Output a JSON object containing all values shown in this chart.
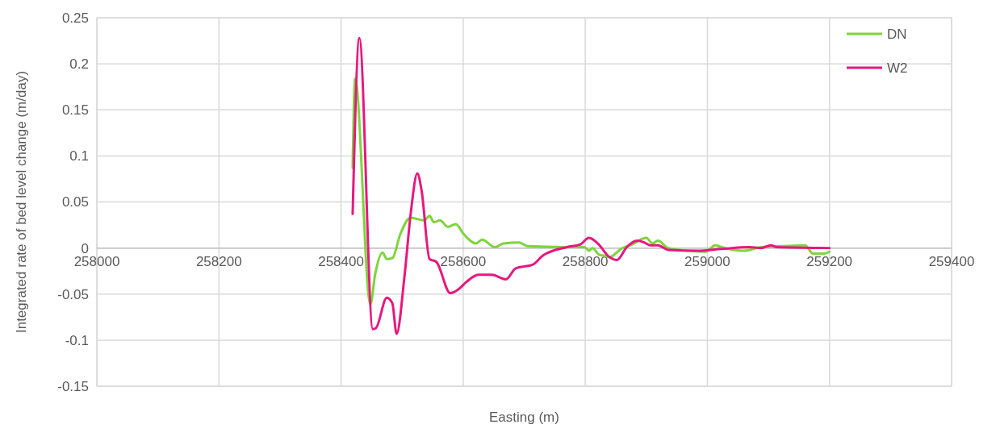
{
  "chart_data": {
    "type": "line",
    "xlabel": "Easting (m)",
    "ylabel": "Integrated rate of bed level change (m/day)",
    "xlim": [
      258000,
      259400
    ],
    "xticks": [
      258000,
      258200,
      258400,
      258600,
      258800,
      259000,
      259200,
      259400
    ],
    "ylim": [
      -0.15,
      0.25
    ],
    "yticks": [
      -0.15,
      -0.1,
      -0.05,
      0,
      0.05,
      0.1,
      0.15,
      0.2,
      0.25
    ],
    "grid": true,
    "legend": "top right",
    "marker": "none",
    "line_style": "solid",
    "series": [
      {
        "name": "DN",
        "color": "#7ed43c",
        "x": [
          258419,
          258423,
          258448,
          258456,
          258468,
          258475,
          258484,
          258497,
          258514,
          258536,
          258545,
          258552,
          258562,
          258575,
          258588,
          258601,
          258621,
          258631,
          258652,
          258666,
          258692,
          258705,
          258764,
          258799,
          258806,
          258812,
          258822,
          258835,
          258839,
          258861,
          258874,
          258900,
          258910,
          258919,
          258936,
          258997,
          259013,
          259023,
          259060,
          259088,
          259121,
          259160,
          259173,
          259192,
          259200
        ],
        "values": [
          0.087,
          0.184,
          -0.061,
          -0.028,
          -0.005,
          -0.012,
          -0.011,
          0.015,
          0.033,
          0.03,
          0.035,
          0.028,
          0.03,
          0.023,
          0.026,
          0.015,
          0.005,
          0.009,
          0.001,
          0.005,
          0.006,
          0.002,
          0.001,
          0.001,
          -0.003,
          0,
          -0.007,
          -0.009,
          -0.01,
          0,
          0.003,
          0.011,
          0.005,
          0.008,
          0,
          -0.004,
          0.003,
          0.001,
          -0.003,
          0.001,
          0.002,
          0.003,
          -0.006,
          -0.006,
          -0.004
        ]
      },
      {
        "name": "W2",
        "color": "#e8177e",
        "x": [
          258419,
          258430,
          258452,
          258457,
          258475,
          258484,
          258491,
          258504,
          258514,
          258525,
          258532,
          258545,
          258556,
          258579,
          258592,
          258605,
          258625,
          258647,
          258670,
          258686,
          258714,
          258731,
          258770,
          258792,
          258806,
          258822,
          258838,
          258852,
          258868,
          258885,
          258897,
          258906,
          258919,
          258936,
          258984,
          259023,
          259069,
          259088,
          259104,
          259114,
          259200
        ],
        "values": [
          0.037,
          0.228,
          -0.088,
          -0.087,
          -0.054,
          -0.06,
          -0.093,
          -0.03,
          0.037,
          0.081,
          0.062,
          -0.012,
          -0.015,
          -0.049,
          -0.045,
          -0.037,
          -0.029,
          -0.029,
          -0.034,
          -0.022,
          -0.018,
          -0.008,
          0.001,
          0.004,
          0.011,
          0.004,
          -0.009,
          -0.013,
          0.001,
          0.008,
          0.006,
          0.003,
          0.003,
          -0.002,
          -0.003,
          -0.001,
          0.001,
          0,
          0.003,
          0.001,
          0
        ]
      }
    ]
  }
}
